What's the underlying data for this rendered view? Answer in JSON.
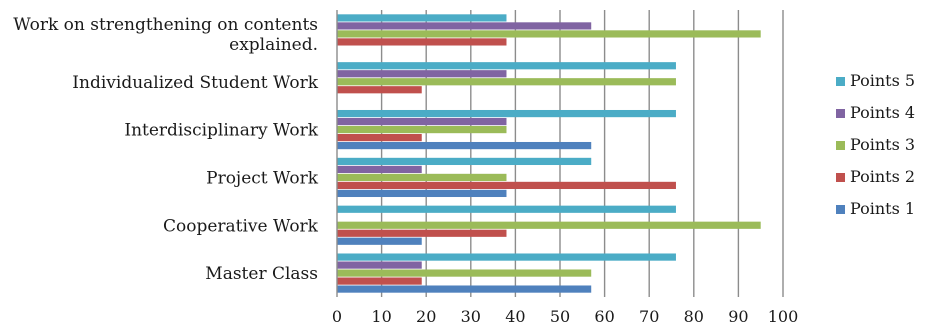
{
  "chart_data": {
    "type": "bar",
    "orientation": "horizontal",
    "categories": [
      "Master Class",
      "Cooperative Work",
      "Project Work",
      "Interdisciplinary Work",
      "Individualized Student Work",
      "Work on strengthening on contents explained."
    ],
    "category_display": [
      [
        "Master Class"
      ],
      [
        "Cooperative Work"
      ],
      [
        "Project Work"
      ],
      [
        "Interdisciplinary Work"
      ],
      [
        "Individualized Student Work"
      ],
      [
        "Work on strengthening on contents",
        "explained."
      ]
    ],
    "series": [
      {
        "name": "Points 1",
        "color": "#4F81BD",
        "values": [
          57,
          19,
          38,
          57,
          0,
          0
        ]
      },
      {
        "name": "Points 2",
        "color": "#C0504D",
        "values": [
          19,
          38,
          76,
          19,
          19,
          38
        ]
      },
      {
        "name": "Points 3",
        "color": "#9BBB59",
        "values": [
          57,
          95,
          38,
          38,
          76,
          95
        ]
      },
      {
        "name": "Points 4",
        "color": "#8064A2",
        "values": [
          19,
          0,
          19,
          38,
          38,
          57
        ]
      },
      {
        "name": "Points 5",
        "color": "#4BACC6",
        "values": [
          76,
          76,
          57,
          76,
          76,
          38
        ]
      }
    ],
    "xlim": [
      0,
      100
    ],
    "xticks": [
      0,
      10,
      20,
      30,
      40,
      50,
      60,
      70,
      80,
      90,
      100
    ],
    "grid": true,
    "legend_position": "right",
    "title": "",
    "xlabel": "",
    "ylabel": ""
  }
}
